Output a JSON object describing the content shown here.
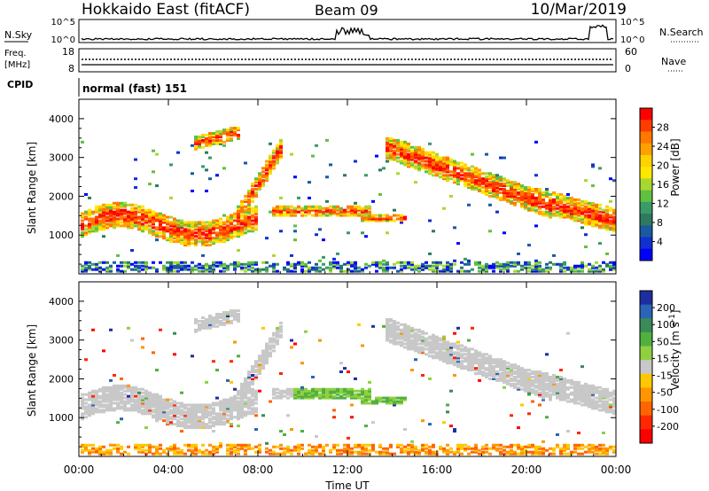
{
  "header": {
    "station": "Hokkaido East (fitACF)",
    "beam": "Beam 09",
    "date": "10/Mar/2019"
  },
  "noise_panel": {
    "left_label": "N.Sky",
    "right_label": "N.Search",
    "left_ticks": [
      "10^5",
      "10^0"
    ],
    "right_ticks": [
      "10^5",
      "10^0"
    ]
  },
  "freq_panel": {
    "left_label_1": "Freq.",
    "left_label_2": "[MHz]",
    "right_label": "Nave",
    "left_ticks": [
      "18",
      "8"
    ],
    "right_ticks": [
      "60",
      "0"
    ]
  },
  "cpid": {
    "label": "CPID",
    "text": "normal (fast) 151"
  },
  "chart_data": [
    {
      "type": "heatmap",
      "title": "",
      "xlabel": "Time UT",
      "ylabel": "Slant Range [km]",
      "colorbar_label": "Power [dB]",
      "x_ticks": [
        "00:00",
        "04:00",
        "08:00",
        "12:00",
        "16:00",
        "20:00",
        "00:00"
      ],
      "y_ticks": [
        "1000",
        "2000",
        "3000",
        "4000"
      ],
      "ylim": [
        0,
        4500
      ],
      "colorbar_ticks": [
        "28",
        "24",
        "20",
        "16",
        "12",
        "8",
        "4"
      ],
      "colorbar_colors": [
        "#ff0000",
        "#ff3c00",
        "#ff7800",
        "#ffa000",
        "#ffd200",
        "#ffe800",
        "#a8d830",
        "#60c040",
        "#3a9a68",
        "#2c7a60",
        "#1a5aa0",
        "#1030d0",
        "#0000ff"
      ]
    },
    {
      "type": "heatmap",
      "title": "",
      "xlabel": "Time UT",
      "ylabel": "Slant Range [km]",
      "colorbar_label": "Velocity [m s^-1]",
      "x_ticks": [
        "00:00",
        "04:00",
        "08:00",
        "12:00",
        "16:00",
        "20:00",
        "00:00"
      ],
      "y_ticks": [
        "1000",
        "2000",
        "3000",
        "4000"
      ],
      "ylim": [
        0,
        4500
      ],
      "colorbar_ticks": [
        "200",
        "100",
        "50",
        "15",
        "-15",
        "-50",
        "-100",
        "-200"
      ],
      "colorbar_colors": [
        "#1e2ea0",
        "#2a64b4",
        "#3a8a5a",
        "#50b040",
        "#90d040",
        "#c8c8c8",
        "#ffc800",
        "#ff9600",
        "#ff6400",
        "#ff2800",
        "#ff0000"
      ]
    }
  ]
}
